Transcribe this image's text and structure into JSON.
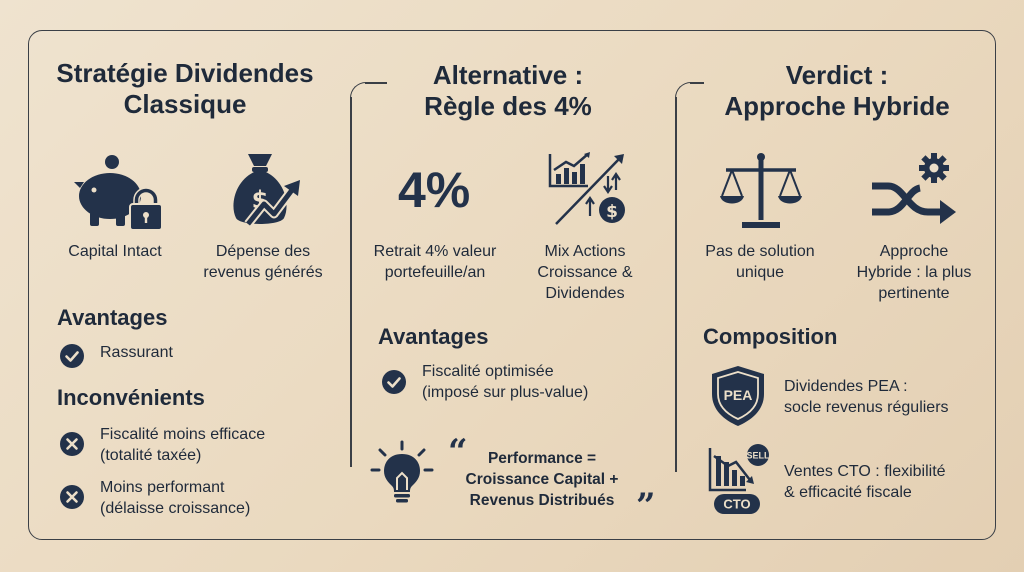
{
  "columns": [
    {
      "title": "Stratégie Dividendes\nClassique",
      "icons": [
        {
          "icon": "piggy-bank-lock-icon",
          "caption": "Capital Intact"
        },
        {
          "icon": "money-bag-growth-icon",
          "caption": "Dépense des\nrevenus générés"
        }
      ],
      "sections": [
        {
          "heading": "Avantages",
          "items": [
            {
              "icon": "check-icon",
              "text": "Rassurant"
            }
          ]
        },
        {
          "heading": "Inconvénients",
          "items": [
            {
              "icon": "cross-icon",
              "text": "Fiscalité moins efficace\n(totalité taxée)"
            },
            {
              "icon": "cross-icon",
              "text": "Moins performant\n(délaisse croissance)"
            }
          ]
        }
      ]
    },
    {
      "title": "Alternative :\nRègle des 4%",
      "big_figure": "4%",
      "icons": [
        {
          "icon": "percent-figure",
          "caption": "Retrait 4% valeur\nportefeuille/an"
        },
        {
          "icon": "chart-dollar-mix-icon",
          "caption": "Mix Actions\nCroissance &\nDividendes"
        }
      ],
      "sections": [
        {
          "heading": "Avantages",
          "items": [
            {
              "icon": "check-icon",
              "text": "Fiscalité optimisée\n(imposé sur plus-value)"
            }
          ]
        }
      ],
      "quote": {
        "open": "“",
        "close": "”",
        "text": "Performance =\nCroissance Capital +\nRevenus Distribués",
        "icon": "lightbulb-icon"
      }
    },
    {
      "title": "Verdict :\nApproche Hybride",
      "icons": [
        {
          "icon": "scales-icon",
          "caption": "Pas de solution\nunique"
        },
        {
          "icon": "shuffle-gear-icon",
          "caption": "Approche\nHybride : la plus\npertinente"
        }
      ],
      "sections": [
        {
          "heading": "Composition",
          "items": [
            {
              "icon": "pea-shield-icon",
              "badge": "PEA",
              "text": "Dividendes PEA :\nsocle revenus réguliers"
            },
            {
              "icon": "cto-sell-icon",
              "badge": "CTO",
              "badge2": "SELL",
              "text": "Ventes CTO : flexibilité\n& efficacité fiscale"
            }
          ]
        }
      ]
    }
  ],
  "colors": {
    "ink": "#1f2a3a",
    "navy": "#23324a",
    "line": "#3a3f46",
    "bg": "#ecdfc9"
  }
}
